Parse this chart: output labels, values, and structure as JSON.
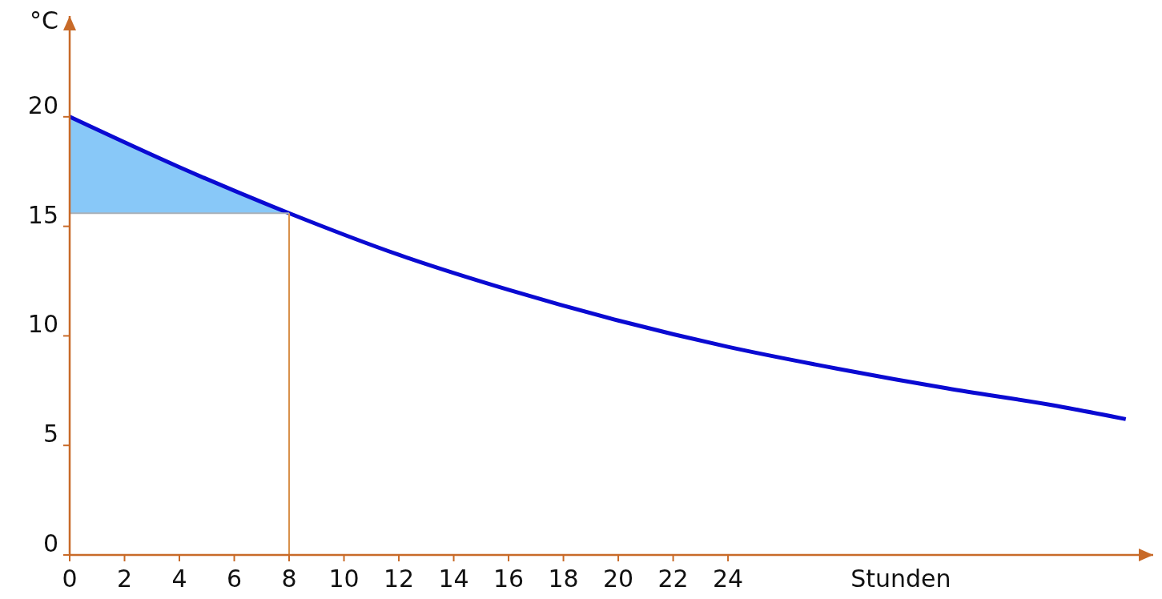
{
  "chart_data": {
    "type": "line",
    "xlabel": "Stunden",
    "ylabel": "°C",
    "x": [
      0,
      4,
      8,
      12,
      16,
      20,
      24,
      28,
      32,
      36,
      38.5
    ],
    "series": [
      {
        "color": "#0a0ad2",
        "values": [
          20,
          17.7,
          15.6,
          13.7,
          12.1,
          10.7,
          9.5,
          8.5,
          7.6,
          6.8,
          6.2
        ],
        "lower": [
          15.6,
          15.6,
          15.6,
          null,
          null,
          null,
          null,
          null,
          null,
          null,
          null
        ],
        "upper": [
          20,
          17.7,
          15.6,
          null,
          null,
          null,
          null,
          null,
          null,
          null,
          null
        ]
      }
    ],
    "xlim": [
      0,
      39.5
    ],
    "xticks": [
      0,
      2,
      4,
      6,
      8,
      10,
      12,
      14,
      16,
      18,
      20,
      22,
      24
    ],
    "ylim": [
      0,
      24.6
    ],
    "yticks": [
      0,
      5,
      10,
      15,
      20
    ],
    "ref_lines": [
      {
        "axis": "x",
        "value": 8,
        "color": "#d8904a"
      },
      {
        "axis": "y",
        "value": 15.6,
        "color": "#a8b0b8"
      }
    ],
    "grid": false,
    "marker": "none",
    "line_style": "solid"
  }
}
